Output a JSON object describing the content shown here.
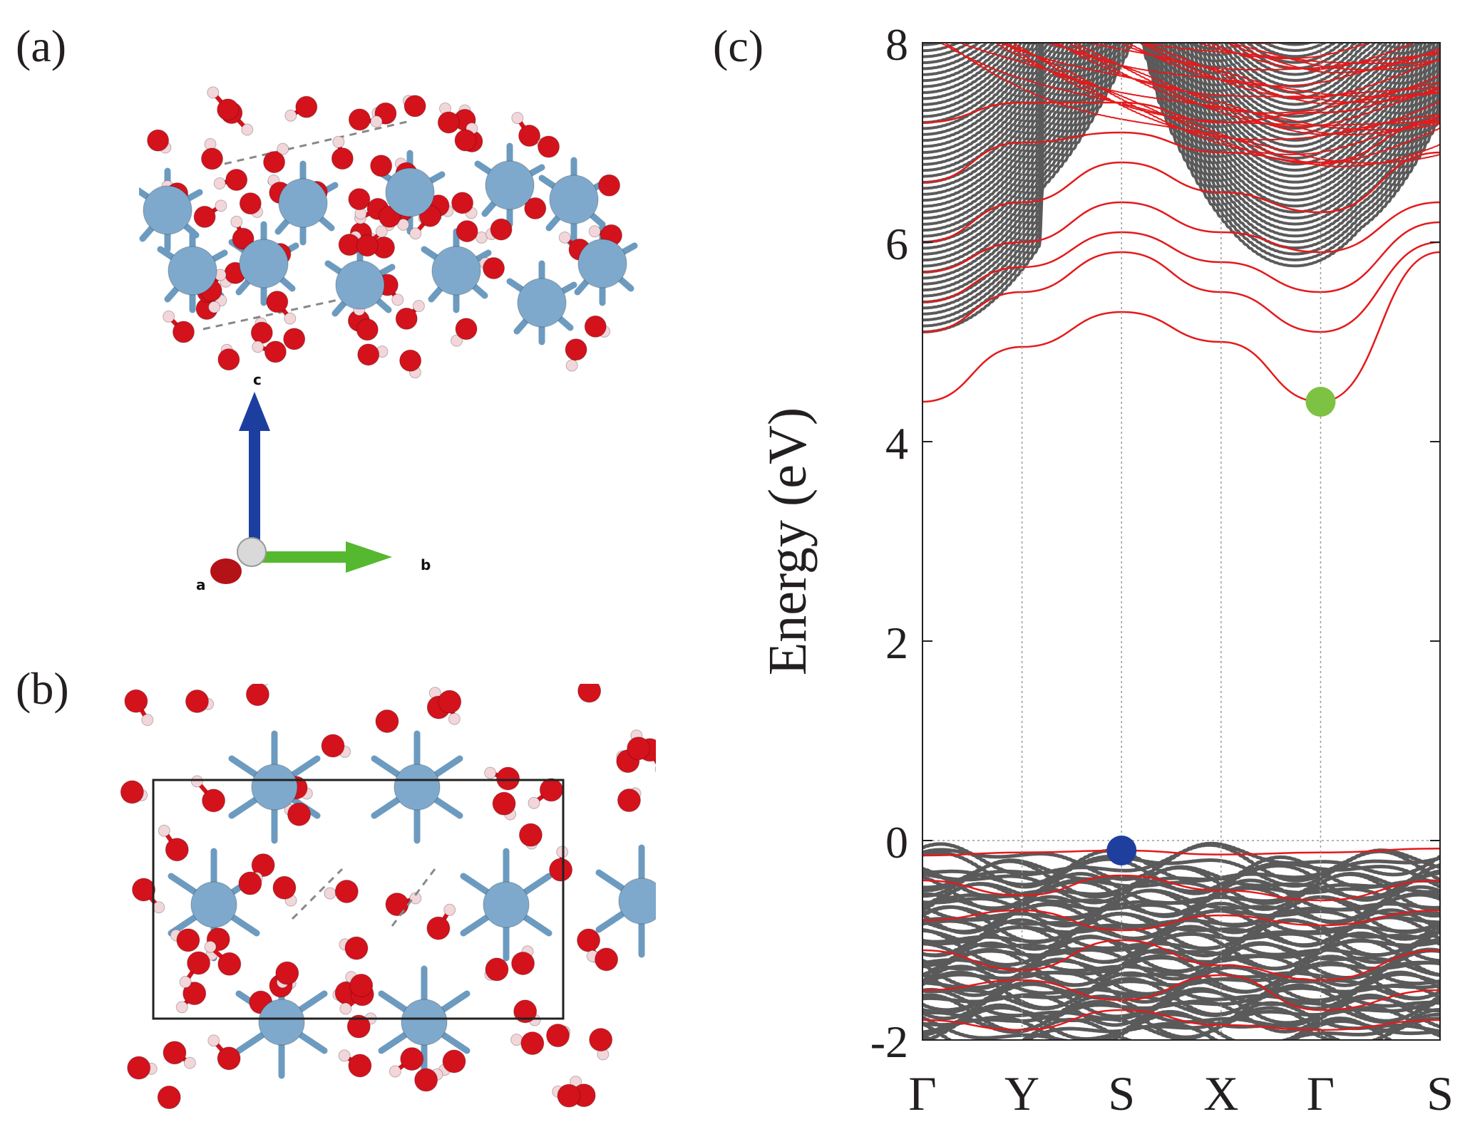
{
  "panels": {
    "a": {
      "label": "(a)",
      "axes": {
        "a": "a",
        "b": "b",
        "c": "c"
      }
    },
    "b": {
      "label": "(b)"
    },
    "c": {
      "label": "(c)"
    }
  },
  "colors": {
    "oxygen": "#d4121c",
    "hydrogen": "#f3d6da",
    "metal": "#7ea9cc",
    "bond_metal": "#6d9bc0",
    "slab_bands": "#5a5a5a",
    "defect_bands": "#e31a1c",
    "vbm_marker": "#1f3f9e",
    "cbm_marker": "#7dc242",
    "axis_c": "#1c3f9f",
    "axis_b": "#55b82e",
    "axis_a": "#b31217"
  },
  "chart_data": {
    "type": "line",
    "title": "",
    "xlabel": "",
    "ylabel": "Energy (eV)",
    "ylim": [
      -2,
      8
    ],
    "yticks": [
      "-2",
      "0",
      "2",
      "4",
      "6",
      "8"
    ],
    "k_labels": [
      "Γ",
      "Y",
      "S",
      "X",
      "Γ",
      "S"
    ],
    "k_positions": [
      0,
      0.5,
      1.0,
      1.5,
      2.0,
      2.6
    ],
    "grid": "vertical dotted lines at k-points, horizontal dotted line at 0",
    "markers": [
      {
        "name": "VBM",
        "k": 1.0,
        "energy": -0.1,
        "color": "#1f3f9e"
      },
      {
        "name": "CBM",
        "k": 2.0,
        "energy": 4.4,
        "color": "#7dc242"
      }
    ],
    "series": [
      {
        "kind": "defect",
        "k": [
          0,
          0.5,
          1.0,
          1.5,
          2.0,
          2.6
        ],
        "energy": [
          4.4,
          4.95,
          5.3,
          5.0,
          4.4,
          5.9
        ]
      },
      {
        "kind": "defect",
        "k": [
          0,
          0.5,
          1.0,
          1.5,
          2.0,
          2.6
        ],
        "energy": [
          5.1,
          5.5,
          5.9,
          5.5,
          5.1,
          6.0
        ]
      },
      {
        "kind": "defect",
        "k": [
          0,
          0.5,
          1.0,
          1.5,
          2.0,
          2.6
        ],
        "energy": [
          5.4,
          5.75,
          6.1,
          5.8,
          5.5,
          6.2
        ]
      },
      {
        "kind": "defect",
        "k": [
          0,
          0.5,
          1.0,
          1.5,
          2.0,
          2.6
        ],
        "energy": [
          5.7,
          6.0,
          6.4,
          6.1,
          5.9,
          6.4
        ]
      },
      {
        "kind": "defect",
        "k": [
          0,
          0.5,
          1.0,
          1.5,
          2.0,
          2.6
        ],
        "energy": [
          6.0,
          6.4,
          6.8,
          6.5,
          6.3,
          6.9
        ]
      },
      {
        "kind": "defect",
        "k": [
          0,
          0.5,
          1.0,
          1.5,
          2.0,
          2.6
        ],
        "energy": [
          6.6,
          7.0,
          7.1,
          6.9,
          6.8,
          7.2
        ]
      },
      {
        "kind": "defect",
        "k": [
          0,
          0.5,
          1.0,
          1.5,
          2.0,
          2.6
        ],
        "energy": [
          7.2,
          7.4,
          7.4,
          7.2,
          7.3,
          7.5
        ]
      },
      {
        "kind": "valence",
        "k": [
          0,
          0.5,
          1.0,
          1.5,
          2.0,
          2.6
        ],
        "energy": [
          -0.15,
          -0.12,
          -0.1,
          -0.14,
          -0.12,
          -0.08
        ]
      },
      {
        "kind": "valence",
        "k": [
          0,
          0.5,
          1.0,
          1.5,
          2.0,
          2.6
        ],
        "energy": [
          -0.4,
          -0.55,
          -0.35,
          -0.5,
          -0.6,
          -0.4
        ]
      },
      {
        "kind": "valence",
        "k": [
          0,
          0.5,
          1.0,
          1.5,
          2.0,
          2.6
        ],
        "energy": [
          -0.8,
          -0.7,
          -0.9,
          -0.75,
          -0.85,
          -0.7
        ]
      },
      {
        "kind": "valence",
        "k": [
          0,
          0.5,
          1.0,
          1.5,
          2.0,
          2.6
        ],
        "energy": [
          -1.1,
          -1.3,
          -1.0,
          -1.25,
          -1.4,
          -1.1
        ]
      },
      {
        "kind": "valence",
        "k": [
          0,
          0.5,
          1.0,
          1.5,
          2.0,
          2.6
        ],
        "energy": [
          -1.5,
          -1.4,
          -1.6,
          -1.35,
          -1.7,
          -1.5
        ]
      },
      {
        "kind": "valence",
        "k": [
          0,
          0.5,
          1.0,
          1.5,
          2.0,
          2.6
        ],
        "energy": [
          -1.8,
          -1.9,
          -1.7,
          -1.85,
          -1.9,
          -1.8
        ]
      }
    ]
  }
}
